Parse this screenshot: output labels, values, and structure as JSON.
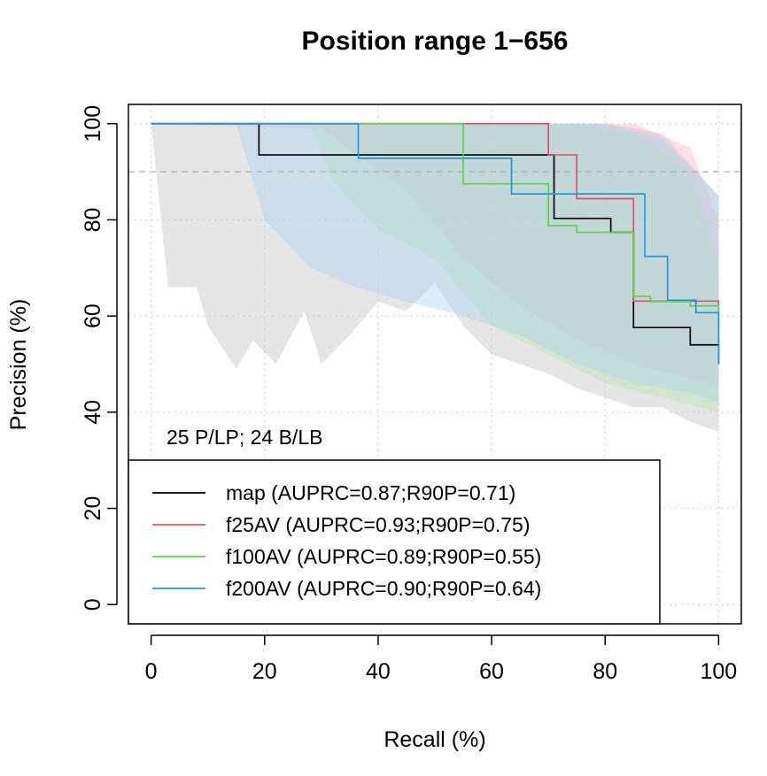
{
  "chart_data": {
    "type": "line",
    "title": "Position range 1−656",
    "xlabel": "Recall (%)",
    "ylabel": "Precision (%)",
    "xlim": [
      -4,
      104
    ],
    "ylim": [
      -4,
      104
    ],
    "xticks": [
      "0",
      "20",
      "40",
      "60",
      "80",
      "100"
    ],
    "yticks": [
      "0",
      "20",
      "40",
      "60",
      "80",
      "100"
    ],
    "grid": true,
    "reference_line_y": 90,
    "annotation": "25 P/LP; 24 B/LB",
    "legend_position": "bottom-left",
    "series": [
      {
        "name": "map (AUPRC=0.87;R90P=0.71)",
        "color": "#000000",
        "x": [
          0,
          19,
          19,
          71,
          71,
          81,
          81,
          85,
          85,
          95,
          95,
          100,
          100
        ],
        "y": [
          100,
          100,
          93.5,
          93.5,
          80.3,
          80.3,
          77.4,
          77.4,
          57.6,
          57.6,
          54,
          54,
          50
        ],
        "band_upper": [
          [
            0,
            100
          ],
          [
            70,
            100
          ],
          [
            80,
            100
          ],
          [
            90,
            98
          ],
          [
            100,
            85
          ]
        ],
        "band_lower": [
          [
            0,
            100
          ],
          [
            3,
            66
          ],
          [
            8,
            66
          ],
          [
            10,
            58
          ],
          [
            15,
            49
          ],
          [
            18,
            55
          ],
          [
            22,
            50
          ],
          [
            27,
            61
          ],
          [
            30,
            50
          ],
          [
            35,
            56
          ],
          [
            40,
            63
          ],
          [
            45,
            61
          ],
          [
            50,
            67
          ],
          [
            55,
            58
          ],
          [
            60,
            52
          ],
          [
            65,
            50
          ],
          [
            70,
            48
          ],
          [
            75,
            45
          ],
          [
            80,
            43
          ],
          [
            85,
            41
          ],
          [
            90,
            41
          ],
          [
            95,
            38
          ],
          [
            100,
            36
          ]
        ],
        "band_color": "#cccccc"
      },
      {
        "name": "f25AV (AUPRC=0.93;R90P=0.75)",
        "color": "#df536b",
        "x": [
          0,
          70,
          70,
          75,
          75,
          85,
          85,
          100,
          100
        ],
        "y": [
          100,
          100,
          93.5,
          93.5,
          84.4,
          84.4,
          63.1,
          63.1,
          50
        ],
        "band_upper": [
          [
            0,
            100
          ],
          [
            85,
            100
          ],
          [
            95,
            95
          ],
          [
            100,
            80
          ]
        ],
        "band_lower": [
          [
            0,
            100
          ],
          [
            30,
            99
          ],
          [
            45,
            86
          ],
          [
            55,
            72
          ],
          [
            65,
            62
          ],
          [
            75,
            55
          ],
          [
            85,
            50
          ],
          [
            95,
            47
          ],
          [
            100,
            45
          ]
        ],
        "band_color": "#f4b6c2"
      },
      {
        "name": "f100AV (AUPRC=0.89;R90P=0.55)",
        "color": "#61d04f",
        "x": [
          0,
          55,
          55,
          70,
          70,
          75,
          75,
          85,
          85,
          88,
          88,
          95,
          95,
          100,
          100
        ],
        "y": [
          100,
          100,
          87.5,
          87.5,
          78.8,
          78.8,
          77.4,
          77.4,
          64.1,
          64.1,
          63,
          63,
          62.1,
          62.1,
          50
        ],
        "band_upper": [
          [
            0,
            100
          ],
          [
            75,
            100
          ],
          [
            85,
            98
          ],
          [
            95,
            90
          ],
          [
            100,
            70
          ]
        ],
        "band_lower": [
          [
            0,
            100
          ],
          [
            28,
            100
          ],
          [
            32,
            88
          ],
          [
            40,
            78
          ],
          [
            50,
            72
          ],
          [
            60,
            58
          ],
          [
            70,
            52
          ],
          [
            80,
            46
          ],
          [
            90,
            43
          ],
          [
            100,
            40
          ]
        ],
        "band_color": "#b7e6ad"
      },
      {
        "name": "f200AV (AUPRC=0.90;R90P=0.64)",
        "color": "#2297e6",
        "x": [
          0,
          36.5,
          36.5,
          63.5,
          63.5,
          87,
          87,
          91,
          91,
          96,
          96,
          100,
          100
        ],
        "y": [
          100,
          100,
          92.8,
          92.8,
          85.4,
          85.4,
          72.4,
          72.4,
          63.3,
          63.3,
          60.7,
          60.7,
          50
        ],
        "band_upper": [
          [
            0,
            100
          ],
          [
            80,
            100
          ],
          [
            90,
            97
          ],
          [
            100,
            85
          ]
        ],
        "band_lower": [
          [
            0,
            100
          ],
          [
            15,
            100
          ],
          [
            20,
            80
          ],
          [
            28,
            70
          ],
          [
            36,
            66
          ],
          [
            45,
            63
          ],
          [
            55,
            60
          ],
          [
            65,
            56
          ],
          [
            75,
            50
          ],
          [
            85,
            46
          ],
          [
            95,
            44
          ],
          [
            100,
            42
          ]
        ],
        "band_color": "#a9d3f3"
      }
    ]
  }
}
